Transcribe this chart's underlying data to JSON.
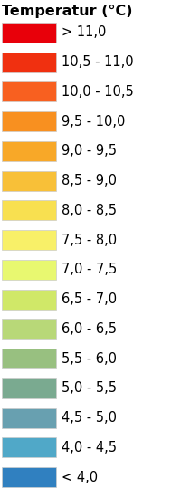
{
  "title": "Temperatur (°C)",
  "labels": [
    "> 11,0",
    "10,5 - 11,0",
    "10,0 - 10,5",
    "9,5 - 10,0",
    "9,0 - 9,5",
    "8,5 - 9,0",
    "8,0 - 8,5",
    "7,5 - 8,0",
    "7,0 - 7,5",
    "6,5 - 7,0",
    "6,0 - 6,5",
    "5,5 - 6,0",
    "5,0 - 5,5",
    "4,5 - 5,0",
    "4,0 - 4,5",
    "< 4,0"
  ],
  "colors": [
    "#e8000a",
    "#f03010",
    "#f86020",
    "#f89020",
    "#f8a828",
    "#f8c038",
    "#f8e050",
    "#f8f068",
    "#e8f870",
    "#d0e868",
    "#b8d878",
    "#98c080",
    "#7aaa90",
    "#68a0b0",
    "#50a8c8",
    "#3080c0"
  ],
  "background_color": "#ffffff",
  "title_fontsize": 11.5,
  "label_fontsize": 10.5,
  "fig_width": 1.89,
  "fig_height": 5.39,
  "dpi": 100
}
